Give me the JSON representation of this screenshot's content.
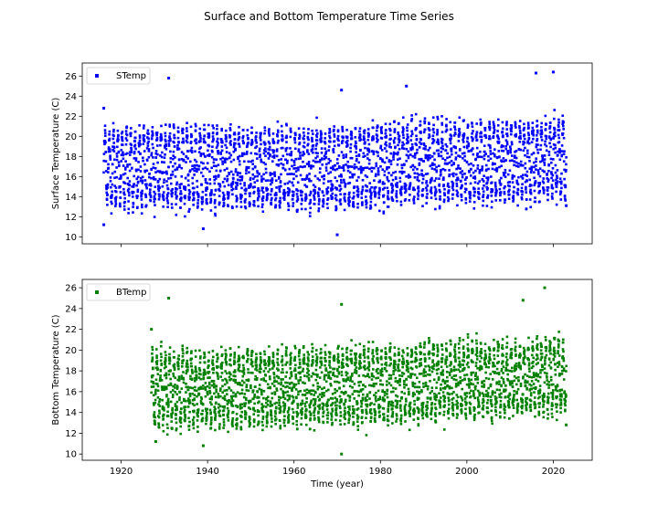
{
  "figure": {
    "suptitle": "Surface and Bottom Temperature Time Series"
  },
  "chart_data": [
    {
      "type": "scatter",
      "ylabel": "Surface Temperature (C)",
      "xlabel": "",
      "xlim": [
        1911,
        2029
      ],
      "ylim": [
        9.3,
        27.3
      ],
      "x_ticks": [
        1920,
        1940,
        1960,
        1980,
        2000,
        2020
      ],
      "y_ticks": [
        10,
        12,
        14,
        16,
        18,
        20,
        22,
        24,
        26
      ],
      "legend_position": "upper-left",
      "grid": false,
      "series": [
        {
          "name": "STemp",
          "color": "#0000ff",
          "x_range": [
            1916,
            2023
          ],
          "points_approx": [
            {
              "x": 1916,
              "y": 11.2
            },
            {
              "x": 1916,
              "y": 22.8
            },
            {
              "x": 1931,
              "y": 25.8
            },
            {
              "x": 1939,
              "y": 10.8
            },
            {
              "x": 1970,
              "y": 10.2
            },
            {
              "x": 1971,
              "y": 24.6
            },
            {
              "x": 1986,
              "y": 25.0
            },
            {
              "x": 2016,
              "y": 26.3
            },
            {
              "x": 2020,
              "y": 26.4
            },
            {
              "x": 2023,
              "y": 13.1
            }
          ],
          "typical_range": [
            13,
            22
          ],
          "mean_trend": [
            {
              "x": 1916,
              "y": 16.8
            },
            {
              "x": 1930,
              "y": 17.0
            },
            {
              "x": 1950,
              "y": 16.8
            },
            {
              "x": 1970,
              "y": 16.7
            },
            {
              "x": 1990,
              "y": 17.5
            },
            {
              "x": 2010,
              "y": 17.3
            },
            {
              "x": 2023,
              "y": 18.0
            }
          ]
        }
      ]
    },
    {
      "type": "scatter",
      "ylabel": "Bottom Temperature (C)",
      "xlabel": "Time (year)",
      "xlim": [
        1911,
        2029
      ],
      "ylim": [
        9.4,
        26.8
      ],
      "x_ticks": [
        1920,
        1940,
        1960,
        1980,
        2000,
        2020
      ],
      "y_ticks": [
        10,
        12,
        14,
        16,
        18,
        20,
        22,
        24,
        26
      ],
      "legend_position": "upper-left",
      "grid": false,
      "series": [
        {
          "name": "BTemp",
          "color": "#008000",
          "x_range": [
            1927,
            2023
          ],
          "points_approx": [
            {
              "x": 1927,
              "y": 22.0
            },
            {
              "x": 1928,
              "y": 11.2
            },
            {
              "x": 1931,
              "y": 25.0
            },
            {
              "x": 1939,
              "y": 10.8
            },
            {
              "x": 1971,
              "y": 10.0
            },
            {
              "x": 1971,
              "y": 24.4
            },
            {
              "x": 2013,
              "y": 24.8
            },
            {
              "x": 2018,
              "y": 26.0
            },
            {
              "x": 2023,
              "y": 12.8
            }
          ],
          "typical_range": [
            13,
            21
          ],
          "mean_trend": [
            {
              "x": 1927,
              "y": 16.2
            },
            {
              "x": 1940,
              "y": 16.2
            },
            {
              "x": 1960,
              "y": 16.4
            },
            {
              "x": 1980,
              "y": 16.6
            },
            {
              "x": 2000,
              "y": 17.2
            },
            {
              "x": 2010,
              "y": 17.0
            },
            {
              "x": 2023,
              "y": 17.6
            }
          ]
        }
      ]
    }
  ]
}
